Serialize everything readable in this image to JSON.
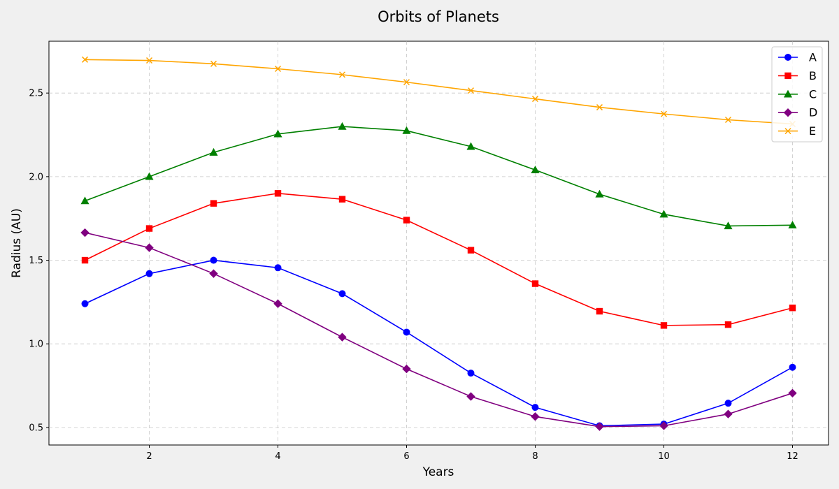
{
  "chart_data": {
    "type": "line",
    "title": "Orbits of Planets",
    "xlabel": "Years",
    "ylabel": "Radius (AU)",
    "x": [
      1,
      2,
      3,
      4,
      5,
      6,
      7,
      8,
      9,
      10,
      11,
      12
    ],
    "xlim": [
      0.44,
      12.56
    ],
    "ylim": [
      0.395,
      2.81
    ],
    "xticks": [
      2,
      4,
      6,
      8,
      10,
      12
    ],
    "yticks": [
      0.5,
      1.0,
      1.5,
      2.0,
      2.5
    ],
    "ytick_labels": [
      "0.5",
      "1.0",
      "1.5",
      "2.0",
      "2.5"
    ],
    "grid": true,
    "legend_position": "top-right",
    "series": [
      {
        "name": "A",
        "color": "#0000ff",
        "marker": "circle",
        "values": [
          1.24,
          1.42,
          1.5,
          1.455,
          1.3,
          1.07,
          0.825,
          0.62,
          0.51,
          0.52,
          0.645,
          0.86
        ]
      },
      {
        "name": "B",
        "color": "#ff0000",
        "marker": "square",
        "values": [
          1.5,
          1.69,
          1.84,
          1.9,
          1.865,
          1.74,
          1.56,
          1.36,
          1.195,
          1.11,
          1.115,
          1.215
        ]
      },
      {
        "name": "C",
        "color": "#008000",
        "marker": "triangle",
        "values": [
          1.855,
          2.0,
          2.145,
          2.255,
          2.3,
          2.275,
          2.18,
          2.04,
          1.895,
          1.775,
          1.705,
          1.71
        ]
      },
      {
        "name": "D",
        "color": "#800080",
        "marker": "diamond",
        "values": [
          1.665,
          1.575,
          1.42,
          1.24,
          1.04,
          0.85,
          0.685,
          0.565,
          0.505,
          0.51,
          0.58,
          0.705
        ]
      },
      {
        "name": "E",
        "color": "#ffa500",
        "marker": "x",
        "values": [
          2.7,
          2.695,
          2.675,
          2.645,
          2.61,
          2.565,
          2.515,
          2.465,
          2.415,
          2.375,
          2.34,
          2.315
        ]
      }
    ]
  }
}
